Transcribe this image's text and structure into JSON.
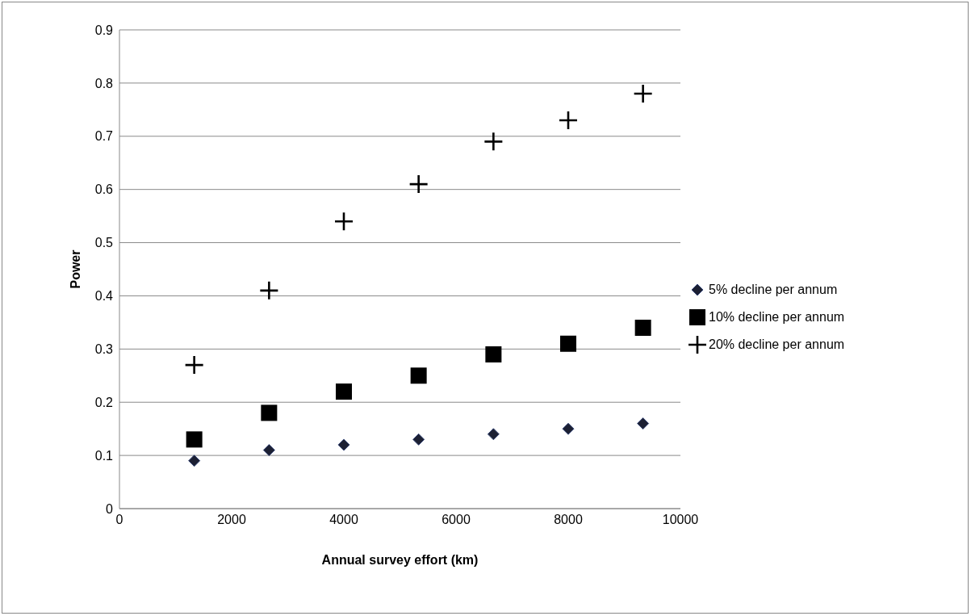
{
  "chart_data": {
    "type": "scatter",
    "xlabel": "Annual survey effort (km)",
    "ylabel": "Power",
    "x": [
      1333,
      2667,
      4000,
      5333,
      6667,
      8000,
      9333
    ],
    "series": [
      {
        "name": "5% decline per annum",
        "color": "#1c2033",
        "marker": "diamond",
        "values": [
          0.09,
          0.11,
          0.12,
          0.13,
          0.14,
          0.15,
          0.16
        ]
      },
      {
        "name": "10% decline per annum",
        "color": "#000000",
        "marker": "square",
        "values": [
          0.13,
          0.18,
          0.22,
          0.25,
          0.29,
          0.31,
          0.34
        ]
      },
      {
        "name": "20% decline per annum",
        "color": "#000000",
        "marker": "cross",
        "values": [
          0.27,
          0.41,
          0.54,
          0.61,
          0.69,
          0.73,
          0.78
        ]
      }
    ],
    "xlim": [
      0,
      10000
    ],
    "xticks": [
      0,
      2000,
      4000,
      6000,
      8000,
      10000
    ],
    "ylim": [
      0,
      0.9
    ],
    "yticks": [
      0,
      0.1,
      0.2,
      0.3,
      0.4,
      0.5,
      0.6,
      0.7,
      0.8,
      0.9
    ],
    "grid": "y",
    "legend": "right"
  }
}
